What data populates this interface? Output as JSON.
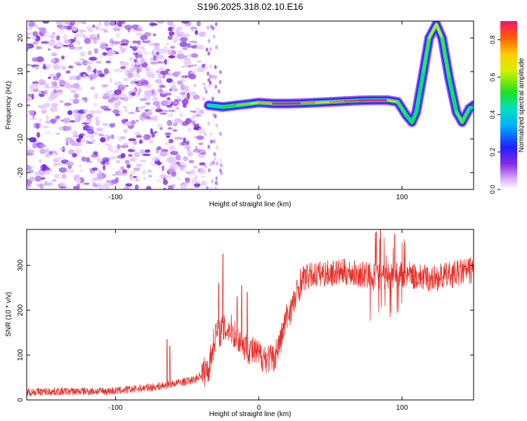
{
  "title": "S196.2025.318.02.10.E16",
  "chart_data": [
    {
      "type": "heatmap",
      "name": "spectrogram",
      "xlabel": "Height of straight line (km)",
      "ylabel": "Frequency (Hz)",
      "xlim": [
        -162,
        150
      ],
      "ylim": [
        -25,
        25
      ],
      "xticks": [
        -100,
        0,
        100
      ],
      "yticks": [
        -20,
        -10,
        0,
        10,
        20
      ],
      "colorbar": {
        "label": "Normalized spectral amplitude",
        "range": [
          0,
          0.9
        ],
        "ticks": [
          0.0,
          0.2,
          0.4,
          0.6,
          0.8
        ]
      },
      "ridge": {
        "description": "dominant frequency track (km, Hz, amplitude)",
        "points": [
          [
            -35,
            0,
            0.4
          ],
          [
            -25,
            -0.5,
            0.5
          ],
          [
            -15,
            0,
            0.55
          ],
          [
            -5,
            0.5,
            0.6
          ],
          [
            0,
            0.8,
            0.65
          ],
          [
            10,
            0.5,
            0.85
          ],
          [
            20,
            0.5,
            0.9
          ],
          [
            30,
            0.6,
            0.85
          ],
          [
            40,
            0.8,
            0.7
          ],
          [
            50,
            1.0,
            0.75
          ],
          [
            60,
            1.2,
            0.8
          ],
          [
            70,
            1.4,
            0.85
          ],
          [
            80,
            1.5,
            0.9
          ],
          [
            90,
            1.5,
            0.85
          ],
          [
            97,
            1.0,
            0.6
          ],
          [
            103,
            -3,
            0.5
          ],
          [
            107,
            -5,
            0.55
          ],
          [
            110,
            -2,
            0.5
          ],
          [
            115,
            10,
            0.5
          ],
          [
            119,
            20,
            0.6
          ],
          [
            124,
            24,
            0.8
          ],
          [
            128,
            20,
            0.6
          ],
          [
            133,
            8,
            0.5
          ],
          [
            138,
            -2,
            0.55
          ],
          [
            142,
            -5,
            0.6
          ],
          [
            147,
            -1,
            0.5
          ],
          [
            150,
            0,
            0.4
          ]
        ]
      }
    },
    {
      "type": "line",
      "name": "snr",
      "xlabel": "Height of straight line (km)",
      "ylabel": "SNR (10 * v/v)",
      "xlim": [
        -162,
        150
      ],
      "ylim": [
        0,
        380
      ],
      "xticks": [
        -100,
        0,
        100
      ],
      "yticks": [
        0,
        100,
        200,
        300
      ],
      "color": "#e8302a",
      "trend": {
        "x": [
          -162,
          -100,
          -70,
          -45,
          -35,
          -30,
          -20,
          -10,
          0,
          10,
          15,
          20,
          25,
          30,
          40,
          60,
          80,
          100,
          120,
          150
        ],
        "y": [
          18,
          20,
          30,
          45,
          70,
          150,
          160,
          120,
          100,
          90,
          130,
          190,
          220,
          270,
          280,
          285,
          275,
          280,
          270,
          290
        ]
      },
      "spikes": [
        {
          "x": -64,
          "y": 135
        },
        {
          "x": -62,
          "y": 120
        },
        {
          "x": -28,
          "y": 260
        },
        {
          "x": -25,
          "y": 325
        },
        {
          "x": -15,
          "y": 230
        },
        {
          "x": -12,
          "y": 255
        },
        {
          "x": -8,
          "y": 240
        },
        {
          "x": 82,
          "y": 375
        },
        {
          "x": 85,
          "y": 380
        },
        {
          "x": 95,
          "y": 370
        },
        {
          "x": 100,
          "y": 350
        }
      ]
    }
  ]
}
